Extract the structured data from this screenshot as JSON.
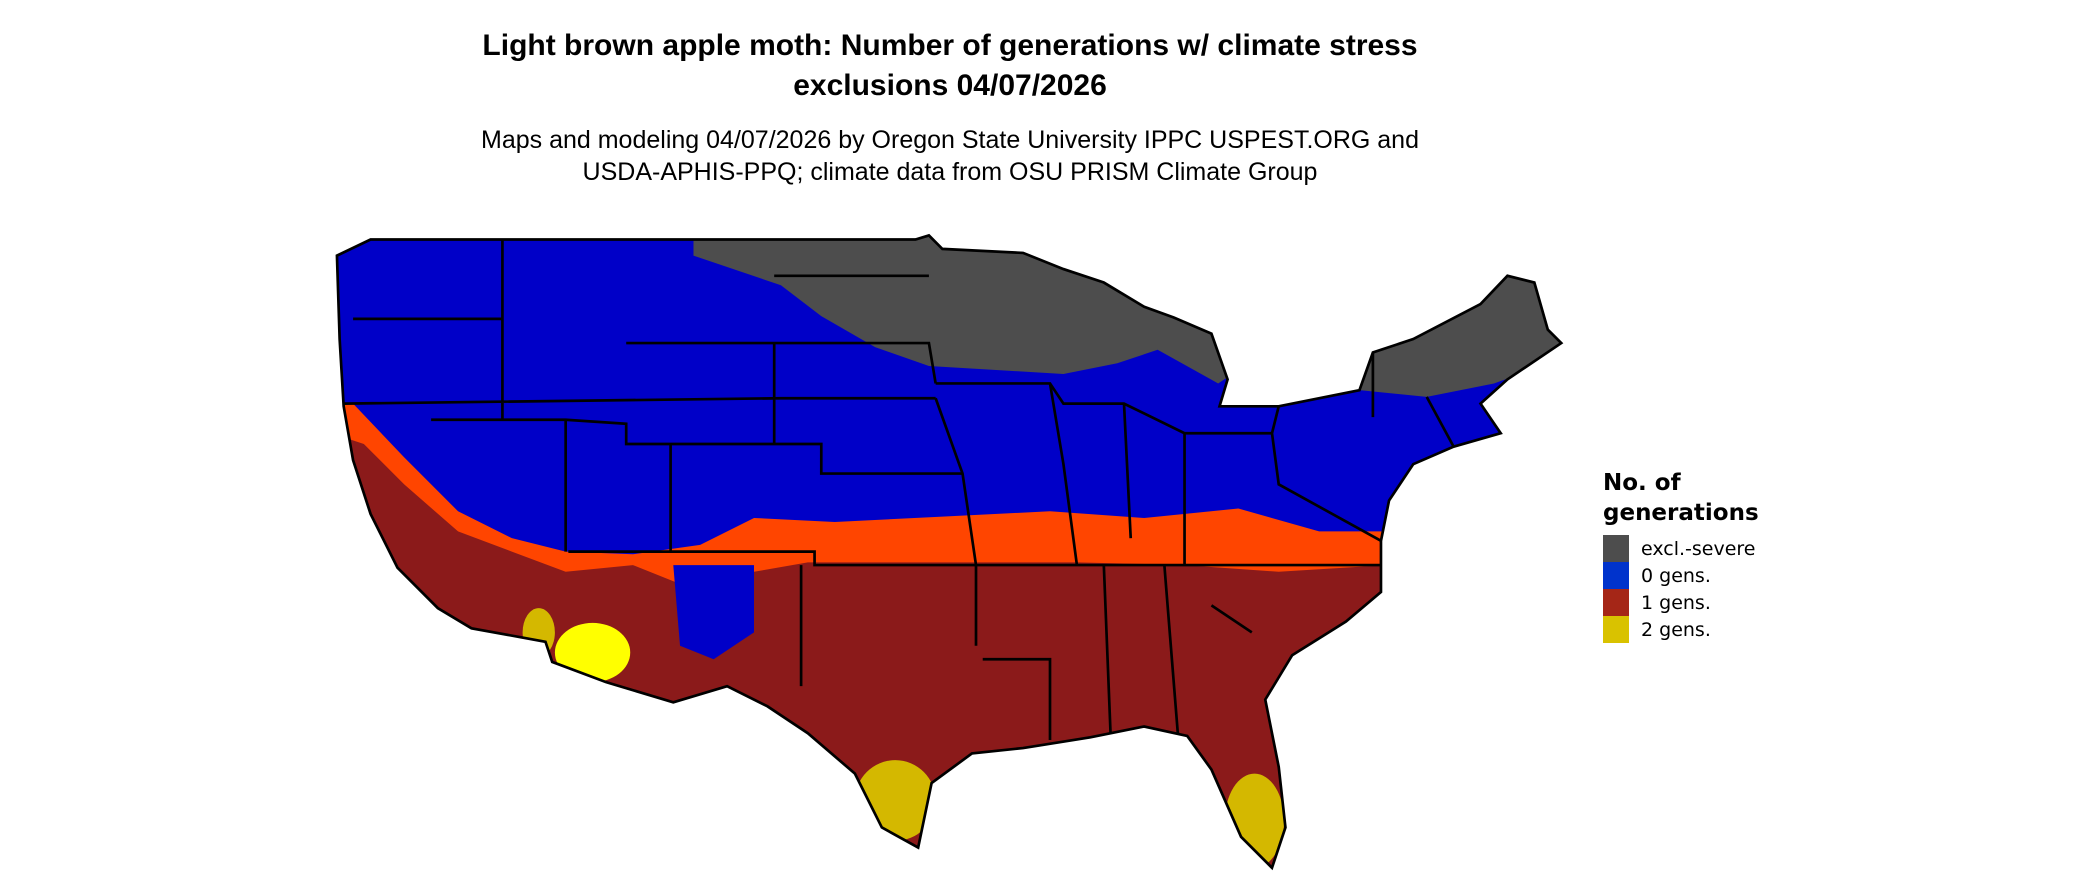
{
  "title": {
    "line1": "Light brown apple moth: Number of generations w/ climate stress",
    "line2": "exclusions 04/07/2026"
  },
  "subtitle": {
    "line1": "Maps and modeling 04/07/2026 by Oregon State University IPPC USPEST.ORG and",
    "line2": "USDA-APHIS-PPQ; climate data from OSU PRISM Climate Group"
  },
  "map": {
    "region": "Contiguous United States",
    "colors": {
      "excl_severe": "#4d4d4d",
      "gens0": "#0000c8",
      "gens1": "#8b1a1a",
      "gens1_light": "#ff4500",
      "gens2": "#d4b800",
      "gens2_light": "#ffff00",
      "border": "#000000"
    }
  },
  "legend": {
    "title_line1": "No. of",
    "title_line2": "generations",
    "items": [
      {
        "label": "excl.-severe",
        "color": "#4d4d4d"
      },
      {
        "label": "0 gens.",
        "color": "#0033cc"
      },
      {
        "label": "1 gens.",
        "color": "#a52617"
      },
      {
        "label": "2 gens.",
        "color": "#d9c200"
      }
    ]
  }
}
